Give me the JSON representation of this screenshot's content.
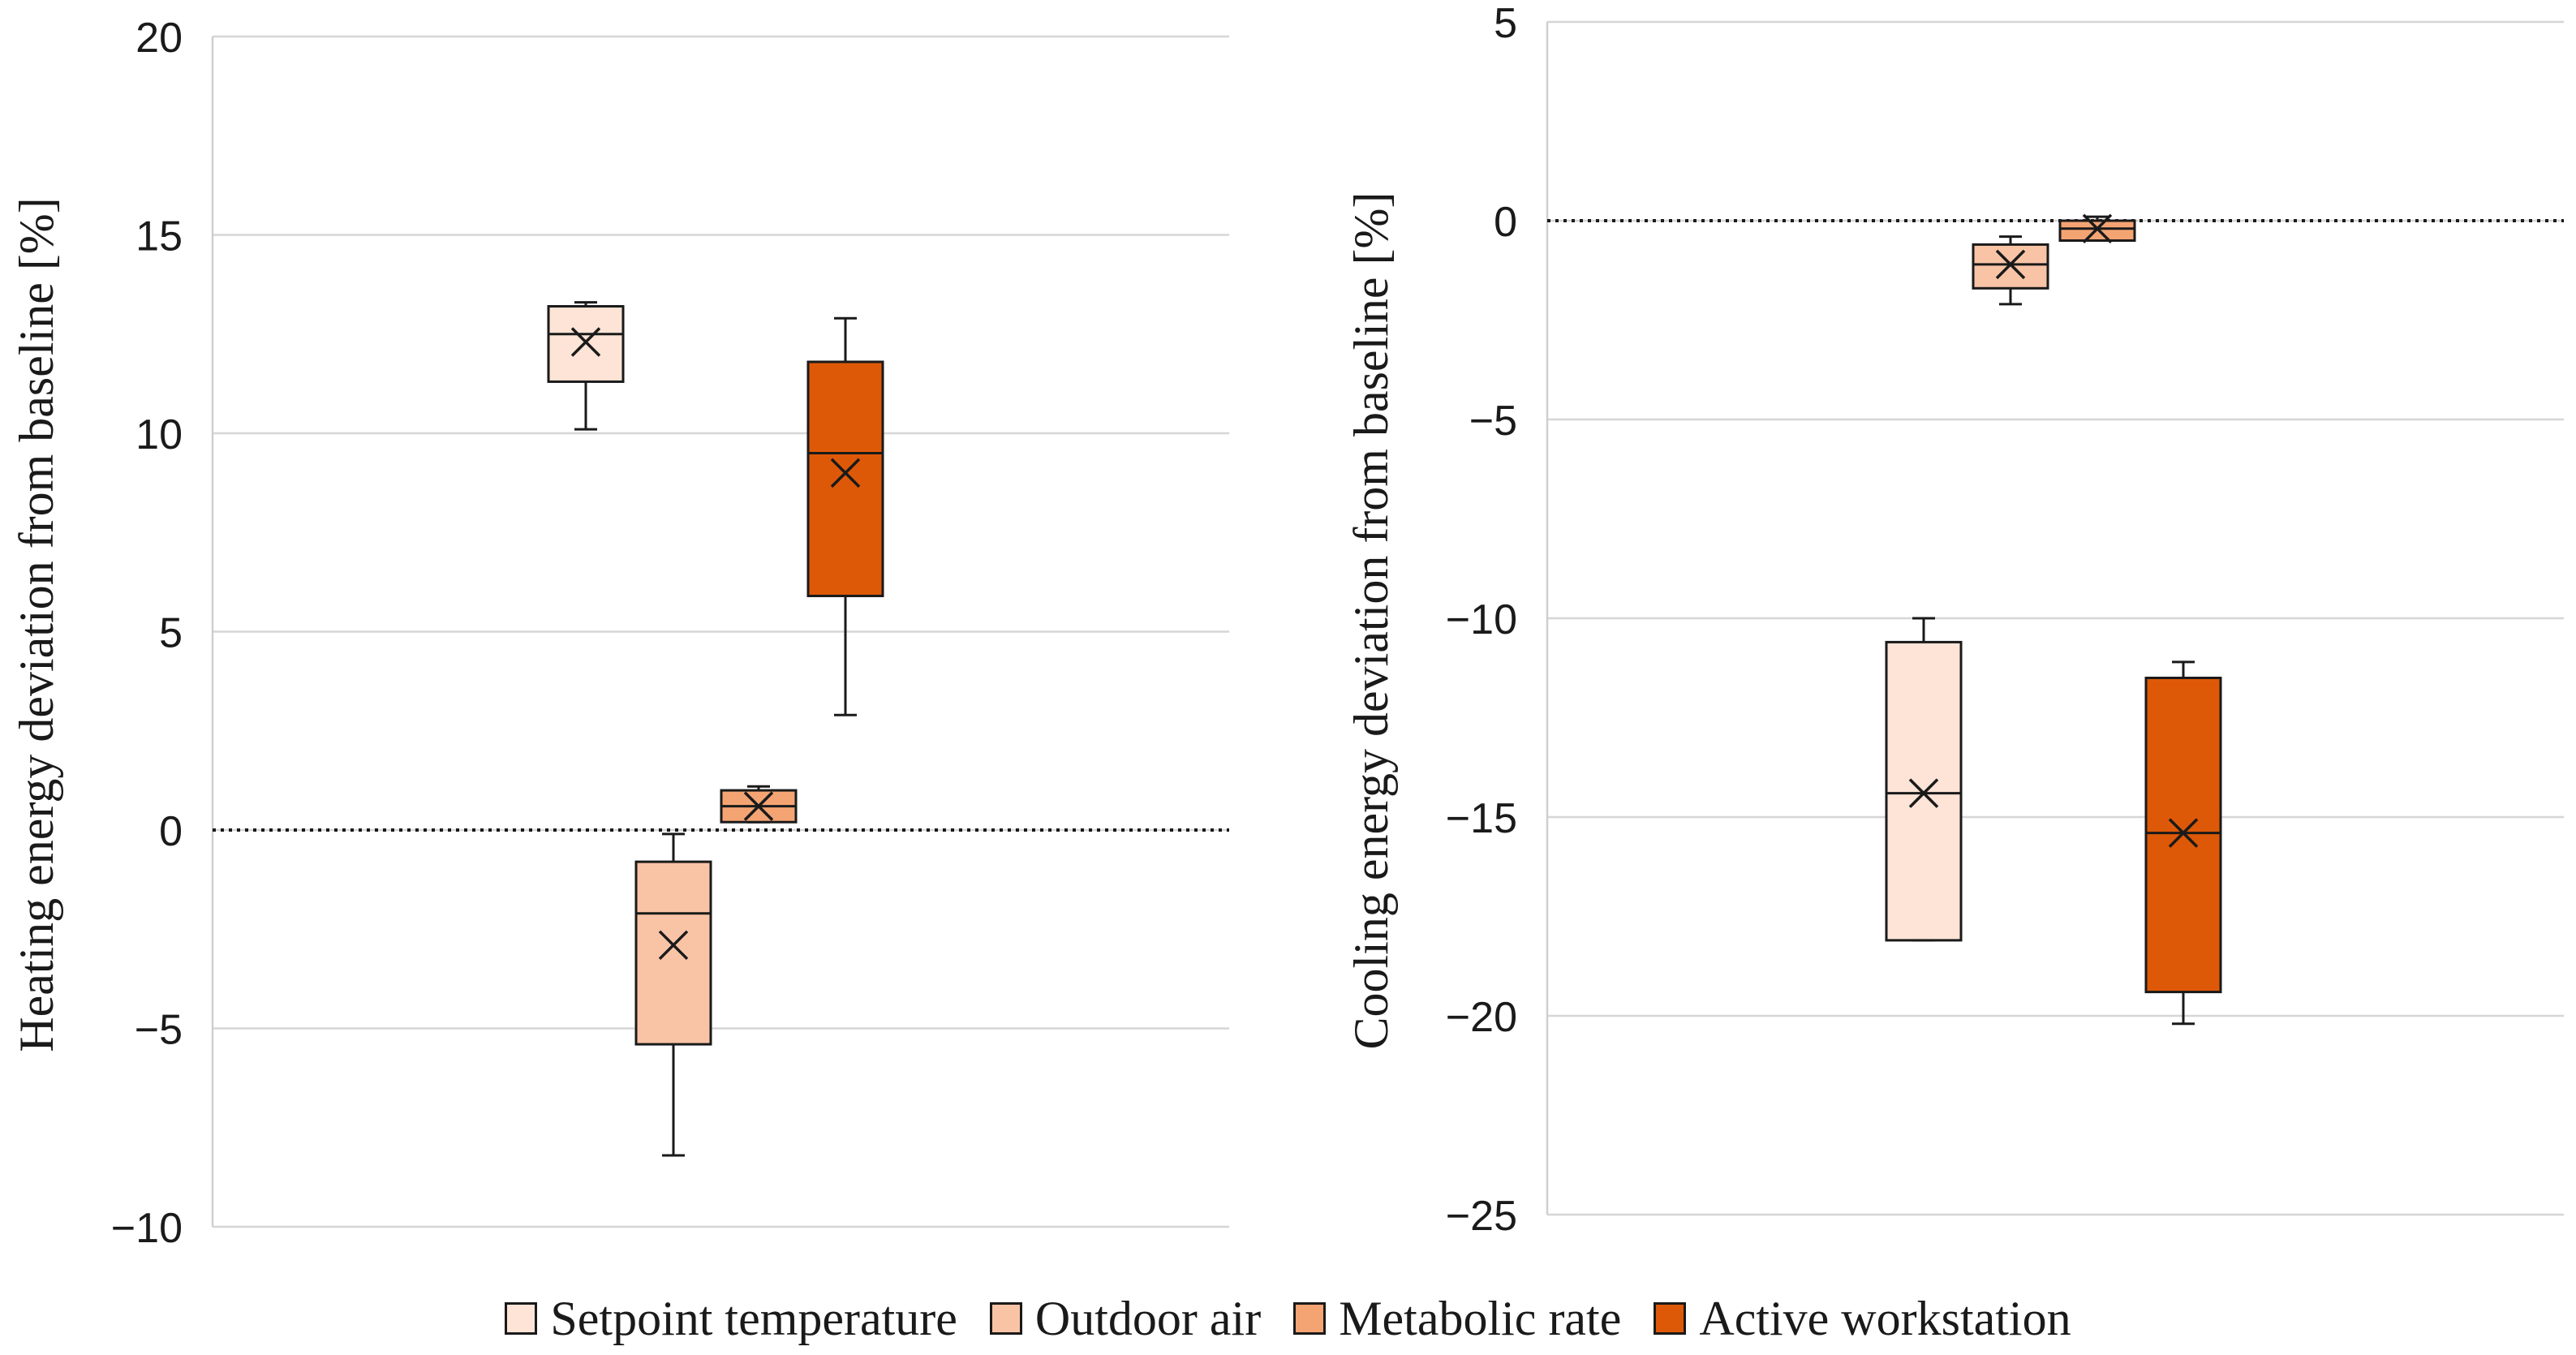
{
  "chart_data": [
    {
      "type": "box",
      "title": "",
      "xlabel": "",
      "ylabel": "Heating energy  deviation from baseline  [%]",
      "ylim": [
        -10,
        20
      ],
      "yticks": [
        -10,
        -5,
        0,
        5,
        10,
        15,
        20
      ],
      "ytick_labels": [
        "−10",
        "−5",
        "0",
        "5",
        "10",
        "15",
        "20"
      ],
      "grid": true,
      "reference_line": 0,
      "series": [
        {
          "name": "Setpoint temperature",
          "min": 10.1,
          "q1": 11.3,
          "median": 12.5,
          "q3": 13.2,
          "max": 13.3,
          "mean": 12.3
        },
        {
          "name": "Outdoor air",
          "min": -8.2,
          "q1": -5.4,
          "median": -2.1,
          "q3": -0.8,
          "max": -0.1,
          "mean": -2.9
        },
        {
          "name": "Metabolic rate",
          "min": 0.2,
          "q1": 0.2,
          "median": 0.6,
          "q3": 1.0,
          "max": 1.1,
          "mean": 0.6
        },
        {
          "name": "Active workstation",
          "min": 2.9,
          "q1": 5.9,
          "median": 9.5,
          "q3": 11.8,
          "max": 12.9,
          "mean": 9.0
        }
      ]
    },
    {
      "type": "box",
      "title": "",
      "xlabel": "",
      "ylabel": "Cooling energy deviation from baseline [%]",
      "ylim": [
        -25,
        5
      ],
      "yticks": [
        -25,
        -20,
        -15,
        -10,
        -5,
        0,
        5
      ],
      "ytick_labels": [
        "−25",
        "−20",
        "−15",
        "−10",
        "−5",
        "0",
        "5"
      ],
      "grid": true,
      "reference_line": 0,
      "series": [
        {
          "name": "Setpoint temperature",
          "min": -18.1,
          "q1": -18.1,
          "median": -14.4,
          "q3": -10.6,
          "max": -10.0,
          "mean": -14.4
        },
        {
          "name": "Outdoor air",
          "min": -2.1,
          "q1": -1.7,
          "median": -1.1,
          "q3": -0.6,
          "max": -0.4,
          "mean": -1.1
        },
        {
          "name": "Metabolic rate",
          "min": -0.5,
          "q1": -0.5,
          "median": -0.2,
          "q3": 0.0,
          "max": 0.1,
          "mean": -0.2
        },
        {
          "name": "Active workstation",
          "min": -20.2,
          "q1": -19.4,
          "median": -15.4,
          "q3": -11.5,
          "max": -11.1,
          "mean": -15.4
        }
      ]
    }
  ],
  "legend": {
    "placement": "bottom",
    "items": [
      {
        "label": "Setpoint temperature",
        "color": "#fde4d6"
      },
      {
        "label": "Outdoor air",
        "color": "#f9c4a6"
      },
      {
        "label": "Metabolic rate",
        "color": "#f4a473"
      },
      {
        "label": "Active workstation",
        "color": "#de5907"
      }
    ]
  }
}
